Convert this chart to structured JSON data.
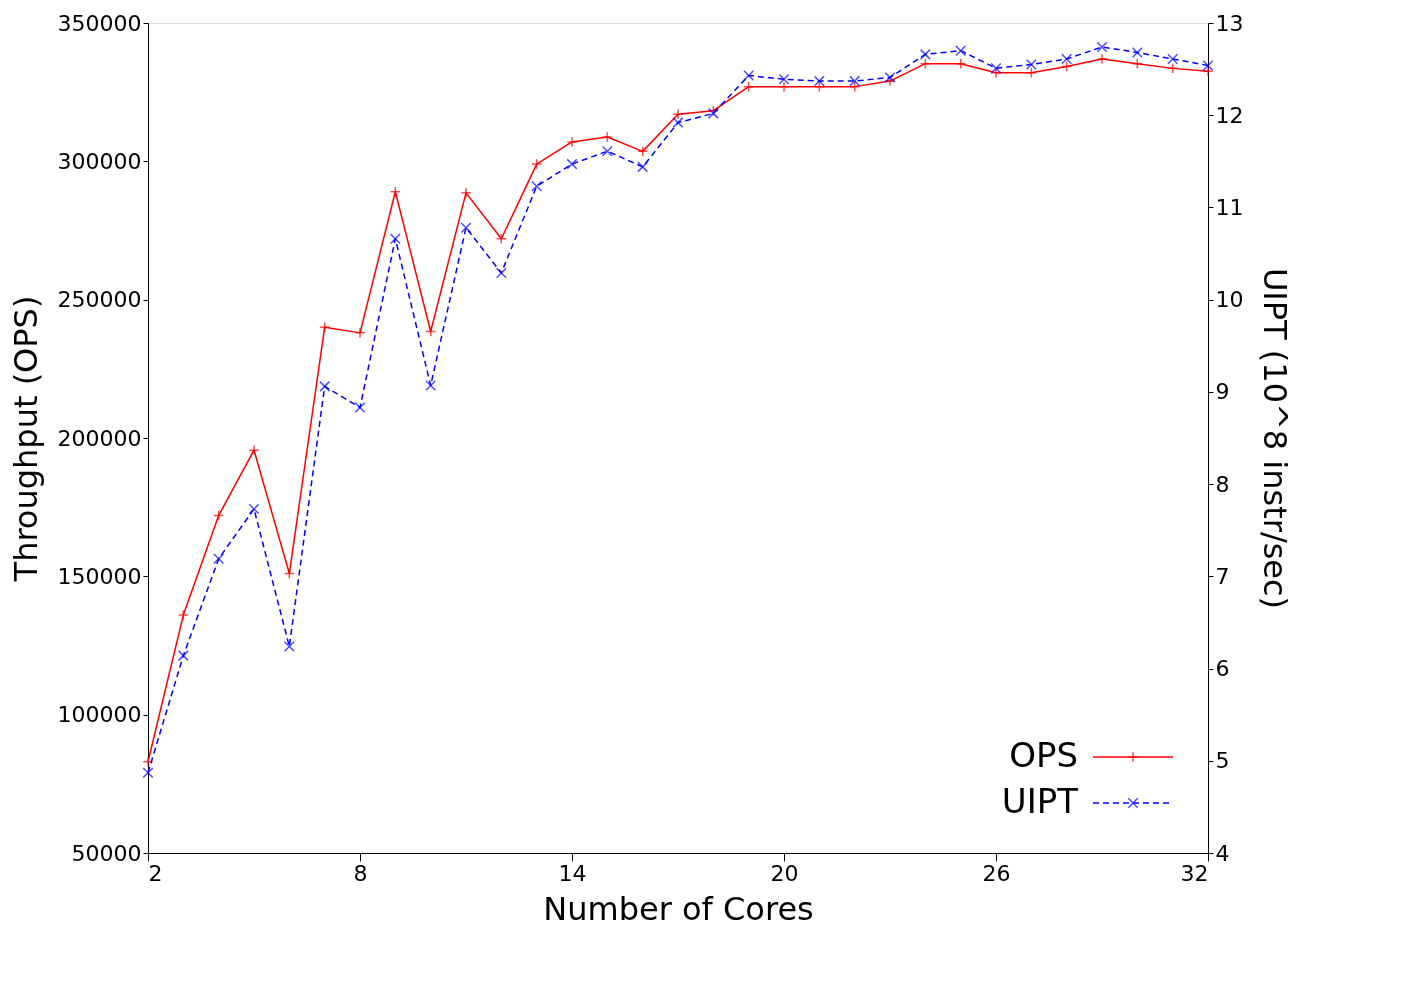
{
  "chart_data": {
    "type": "line",
    "xlabel": "Number of Cores",
    "ylabel": "Throughput (OPS)",
    "y2label": "UIPT (10^8 instr/sec)",
    "x": [
      2,
      3,
      4,
      5,
      6,
      7,
      8,
      9,
      10,
      11,
      12,
      13,
      14,
      15,
      16,
      17,
      18,
      19,
      20,
      21,
      22,
      23,
      24,
      25,
      26,
      27,
      28,
      29,
      30,
      31,
      32
    ],
    "xlim": [
      2,
      32
    ],
    "xticks": [
      2,
      8,
      14,
      20,
      26,
      32
    ],
    "ylim": [
      50000,
      350000
    ],
    "yticks": [
      50000,
      100000,
      150000,
      200000,
      250000,
      300000,
      350000
    ],
    "y2lim": [
      4,
      13
    ],
    "y2ticks": [
      4,
      5,
      6,
      7,
      8,
      9,
      10,
      11,
      12,
      13
    ],
    "legend": "bottom right",
    "grid": false,
    "series": [
      {
        "name": "OPS",
        "color": "#ff0000",
        "marker": "cross",
        "line_style": "solid",
        "values": [
          83000,
          136000,
          172000,
          195600,
          151000,
          240000,
          238000,
          289000,
          238500,
          288600,
          272000,
          299000,
          307000,
          308800,
          303600,
          317000,
          318300,
          327000,
          327000,
          327000,
          327000,
          329000,
          335300,
          335300,
          332000,
          332000,
          334300,
          337000,
          335300,
          333600,
          332600
        ]
      },
      {
        "name": "UIPT",
        "color": "#0000ff",
        "marker": "x",
        "line_style": "dashed",
        "axis": "y2",
        "values": [
          4.87,
          6.14,
          7.19,
          7.73,
          6.24,
          9.06,
          8.83,
          10.66,
          9.07,
          10.78,
          10.29,
          11.23,
          11.47,
          11.61,
          11.44,
          11.92,
          12.02,
          12.43,
          12.39,
          12.37,
          12.37,
          12.41,
          12.66,
          12.7,
          12.51,
          12.55,
          12.61,
          12.74,
          12.68,
          12.61,
          12.54
        ]
      }
    ]
  }
}
